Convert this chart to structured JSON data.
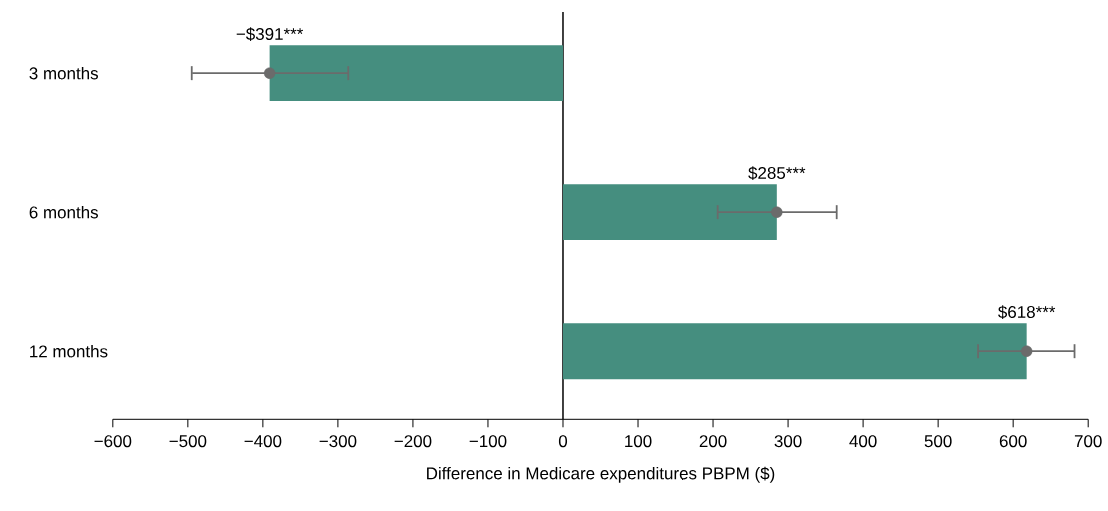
{
  "chart_data": {
    "type": "bar",
    "orientation": "horizontal",
    "xlabel": "Difference in Medicare expenditures PBPM ($)",
    "categories": [
      "3 months",
      "6 months",
      "12 months"
    ],
    "series": [
      {
        "color": "#458e7f",
        "values": [
          -391,
          285,
          618
        ],
        "value_labels": [
          "−$391***",
          "$285***",
          "$618***"
        ]
      },
      {
        "type": "scatter",
        "color": "#6b6b6b",
        "marker": "circle",
        "values": [
          -391,
          285,
          618
        ],
        "errors": [
          [
            -496,
            -285
          ],
          [
            205,
            366
          ],
          [
            552,
            683
          ]
        ]
      }
    ],
    "xlim": [
      -600,
      700
    ],
    "xticks": [
      {
        "value": -600,
        "label": "−600"
      },
      {
        "value": -500,
        "label": "−500"
      },
      {
        "value": -400,
        "label": "−400"
      },
      {
        "value": -300,
        "label": "−300"
      },
      {
        "value": -200,
        "label": "−200"
      },
      {
        "value": -100,
        "label": "−100"
      },
      0,
      100,
      200,
      300,
      400,
      500,
      600,
      700
    ],
    "ref_lines": [
      {
        "axis": "x",
        "value": 0,
        "color": "#000000"
      }
    ],
    "grid": false
  }
}
